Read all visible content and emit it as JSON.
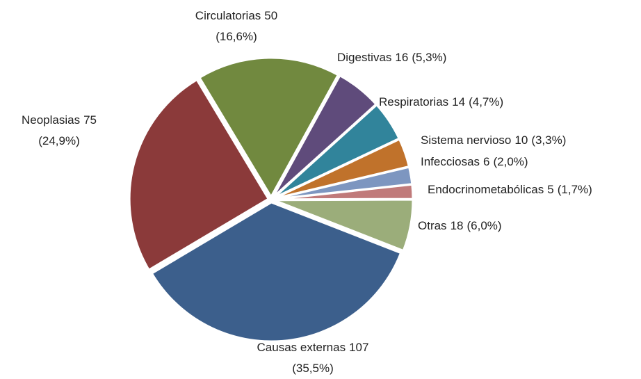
{
  "chart_data": {
    "type": "pie",
    "categories": [
      "Circulatorias",
      "Digestivas",
      "Respiratorias",
      "Sistema nervioso",
      "Infecciosas",
      "Endocrinometabólicas",
      "Otras",
      "Causas externas",
      "Neoplasias"
    ],
    "values": [
      50,
      16,
      14,
      10,
      6,
      5,
      18,
      107,
      75
    ],
    "percent_labels": [
      "(16,6%)",
      "(5,3%)",
      "(4,7%)",
      "(3,3%)",
      "(2,0%)",
      "(1,7%)",
      "(6,0%)",
      "(35,5%)",
      "(24,9%)"
    ],
    "colors": [
      "#71893f",
      "#5f4b7b",
      "#31849b",
      "#c0722b",
      "#7d96c0",
      "#c07a7a",
      "#9bad7a",
      "#3c5f8c",
      "#8b3a3a"
    ]
  }
}
